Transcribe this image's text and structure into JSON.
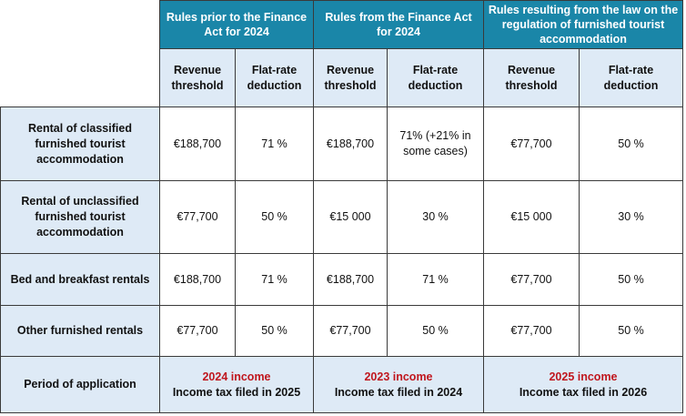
{
  "headers": {
    "groups": [
      "Rules prior to the Finance Act for 2024",
      "Rules from the Finance Act for 2024",
      "Rules resulting from the law on the regulation of furnished tourist accommodation"
    ],
    "sub": {
      "threshold": "Revenue threshold",
      "deduction": "Flat-rate deduction"
    }
  },
  "rows": [
    {
      "label": "Rental of classified furnished tourist accommodation",
      "values": [
        "€188,700",
        "71 %",
        "€188,700",
        "71% (+21% in some cases)",
        "€77,700",
        "50 %"
      ]
    },
    {
      "label": "Rental of unclassified furnished tourist accommodation",
      "values": [
        "€77,700",
        "50 %",
        "€15 000",
        "30 %",
        "€15 000",
        "30 %"
      ]
    },
    {
      "label": "Bed and breakfast rentals",
      "values": [
        "€188,700",
        "71 %",
        "€188,700",
        "71 %",
        "€77,700",
        "50 %"
      ]
    },
    {
      "label": "Other furnished rentals",
      "values": [
        "€77,700",
        "50 %",
        "€77,700",
        "50 %",
        "€77,700",
        "50 %"
      ]
    }
  ],
  "period": {
    "label": "Period of application",
    "items": [
      {
        "income": "2024 income",
        "tax": "Income tax filed in 2025"
      },
      {
        "income": "2023 income",
        "tax": "Income tax filed in 2024"
      },
      {
        "income": "2025 income",
        "tax": "Income tax filed in 2026"
      }
    ]
  },
  "colors": {
    "header_bg": "#1a86a8",
    "row_header_bg": "#deeaf6",
    "income_red": "#c0161d"
  }
}
